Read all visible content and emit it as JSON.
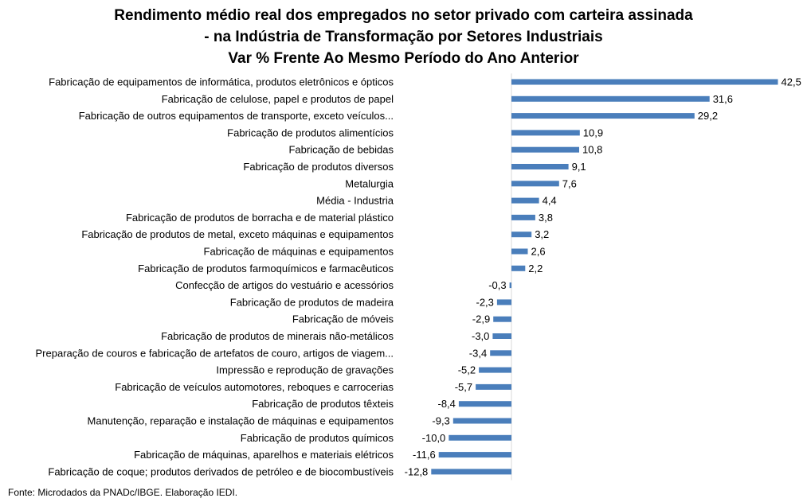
{
  "chart_data": {
    "type": "bar",
    "orientation": "horizontal",
    "title": [
      "Rendimento médio real dos empregados no setor privado com carteira assinada",
      "- na Indústria de Transformação por Setores Industriais",
      "Var % Frente Ao Mesmo Período do Ano Anterior"
    ],
    "xlabel": "",
    "ylabel": "",
    "color": "#4A7EBB",
    "grid": false,
    "legend": "none",
    "xlim": [
      -13,
      43
    ],
    "categories": [
      "Fabricação de equipamentos de informática, produtos eletrônicos e ópticos",
      "Fabricação de celulose, papel e produtos de papel",
      "Fabricação de outros equipamentos de transporte, exceto veículos...",
      "Fabricação de produtos alimentícios",
      "Fabricação de bebidas",
      "Fabricação de produtos diversos",
      "Metalurgia",
      "Média - Industria",
      "Fabricação de produtos de borracha e de material plástico",
      "Fabricação de produtos de metal, exceto máquinas e equipamentos",
      "Fabricação de máquinas e equipamentos",
      "Fabricação de produtos farmoquímicos e farmacêuticos",
      "Confecção de artigos do vestuário e acessórios",
      "Fabricação de produtos de madeira",
      "Fabricação de móveis",
      "Fabricação de produtos de minerais não-metálicos",
      "Preparação de couros e fabricação de artefatos de couro, artigos de viagem...",
      "Impressão e reprodução de gravações",
      "Fabricação de veículos automotores, reboques e carrocerias",
      "Fabricação de produtos têxteis",
      "Manutenção, reparação e instalação de máquinas e equipamentos",
      "Fabricação de produtos químicos",
      "Fabricação de máquinas, aparelhos e materiais elétricos",
      "Fabricação de coque; produtos derivados de petróleo e de biocombustíveis"
    ],
    "values": [
      42.5,
      31.6,
      29.2,
      10.9,
      10.8,
      9.1,
      7.6,
      4.4,
      3.8,
      3.2,
      2.6,
      2.2,
      -0.3,
      -2.3,
      -2.9,
      -3.0,
      -3.4,
      -5.2,
      -5.7,
      -8.4,
      -9.3,
      -10.0,
      -11.6,
      -12.8
    ],
    "data_labels": [
      "42,5",
      "31,6",
      "29,2",
      "10,9",
      "10,8",
      "9,1",
      "7,6",
      "4,4",
      "3,8",
      "3,2",
      "2,6",
      "2,2",
      "-0,3",
      "-2,3",
      "-2,9",
      "-3,0",
      "-3,4",
      "-5,2",
      "-5,7",
      "-8,4",
      "-9,3",
      "-10,0",
      "-11,6",
      "-12,8"
    ]
  },
  "source": "Fonte: Microdados da PNADc/IBGE. Elaboração IEDI."
}
